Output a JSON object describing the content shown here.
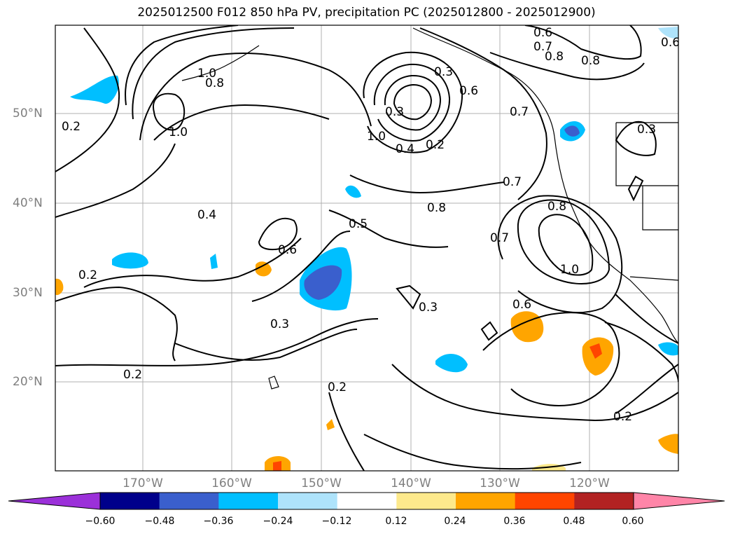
{
  "title": "2025012500 F012 850 hPa PV, precipitation PC (2025012800 - 2025012900)",
  "lat_labels": [
    "50°N",
    "40°N",
    "30°N",
    "20°N"
  ],
  "lon_labels": [
    "170°W",
    "160°W",
    "150°W",
    "140°W",
    "130°W",
    "120°W"
  ],
  "contour_labels": [
    "1.0",
    "0.8",
    "0.2",
    "1.0",
    "0.4",
    "0.6",
    "0.2",
    "0.3",
    "0.2",
    "0.2",
    "0.5",
    "0.3",
    "0.4",
    "0.2",
    "1.0",
    "0.3",
    "0.6",
    "0.7",
    "0.8",
    "0.8",
    "0.6",
    "0.7",
    "0.8",
    "0.7",
    "0.8",
    "1.0",
    "0.7",
    "0.6",
    "0.3",
    "0.2",
    "0.3",
    "0.6"
  ],
  "colorbar": {
    "ticks": [
      "−0.60",
      "−0.48",
      "−0.36",
      "−0.24",
      "−0.12",
      "0.12",
      "0.24",
      "0.36",
      "0.48",
      "0.60"
    ],
    "colors": [
      "#9b30d9",
      "#00008b",
      "#3a5fcd",
      "#00bfff",
      "#aee3fb",
      "#ffffff",
      "#fde98c",
      "#ffa500",
      "#ff4500",
      "#b22222",
      "#ff85a8"
    ]
  },
  "colors": {
    "coast": "#000000",
    "contour": "#000000",
    "grid": "#b0b0b0",
    "axis_label": "#7f7f7f"
  }
}
